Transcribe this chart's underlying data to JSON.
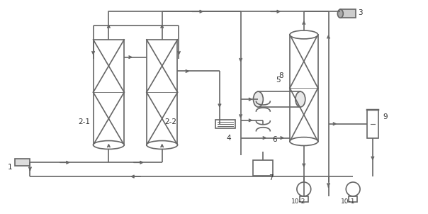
{
  "bg_color": "#ffffff",
  "line_color": "#666666",
  "lw": 1.2
}
